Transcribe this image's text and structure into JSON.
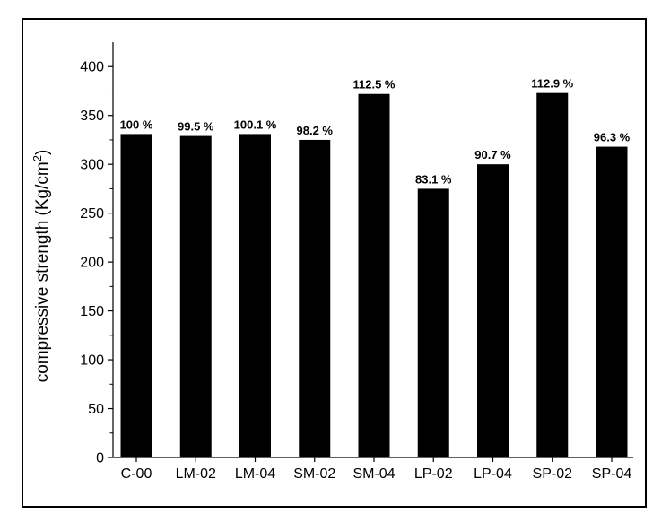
{
  "chart_data": {
    "type": "bar",
    "categories": [
      "C-00",
      "LM-02",
      "LM-04",
      "SM-02",
      "SM-04",
      "LP-02",
      "LP-04",
      "SP-02",
      "SP-04"
    ],
    "values": [
      331,
      329,
      331,
      325,
      372,
      275,
      300,
      373,
      318
    ],
    "data_labels": [
      "100 %",
      "99.5 %",
      "100.1 %",
      "98.2 %",
      "112.5 %",
      "83.1 %",
      "90.7 %",
      "112.9 %",
      "96.3 %"
    ],
    "title": "",
    "xlabel": "",
    "ylabel": "compressive strength (Kg/cm²)",
    "ylim": [
      0,
      425
    ],
    "yticks": [
      0,
      50,
      100,
      150,
      200,
      250,
      300,
      350,
      400
    ],
    "grid": false,
    "colors": {
      "bar": "#000000",
      "axis": "#000000",
      "background": "#ffffff"
    }
  }
}
